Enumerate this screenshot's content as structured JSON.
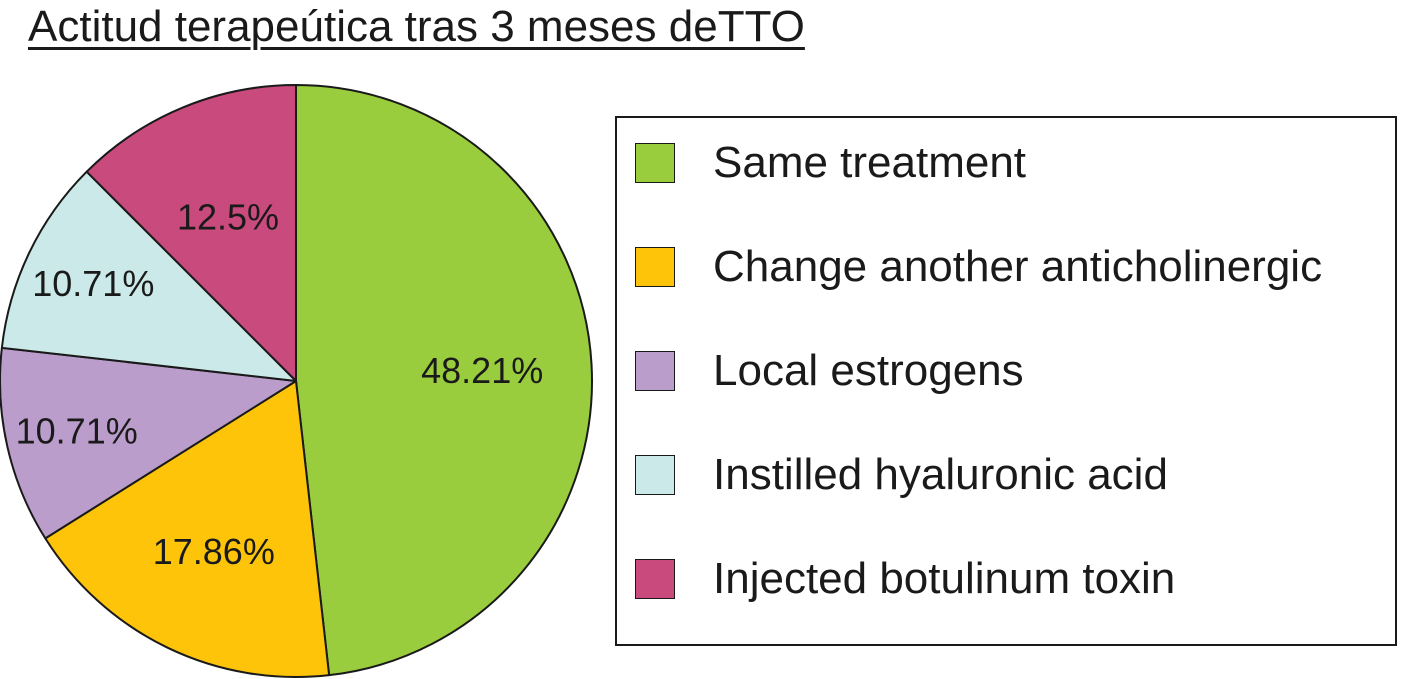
{
  "chart_data": {
    "type": "pie",
    "title": "Actitud terapeútica tras 3 meses deTTO",
    "slices": [
      {
        "label": "Same treatment",
        "value": 48.21,
        "display": "48.21%",
        "color": "#9ACD3E"
      },
      {
        "label": "Change another anticholinergic",
        "value": 17.86,
        "display": "17.86%",
        "color": "#FDC40A"
      },
      {
        "label": "Local estrogens",
        "value": 10.71,
        "display": "10.71%",
        "color": "#BB9DCB"
      },
      {
        "label": "Instilled hyaluronic acid",
        "value": 10.71,
        "display": "10.71%",
        "color": "#CBE9E8"
      },
      {
        "label": "Injected botulinum toxin",
        "value": 12.5,
        "display": "12.5%",
        "color": "#C94A7C"
      }
    ],
    "start_angle": "12 o'clock",
    "direction": "clockwise",
    "legend": {
      "position": "right",
      "boxed": true
    }
  }
}
